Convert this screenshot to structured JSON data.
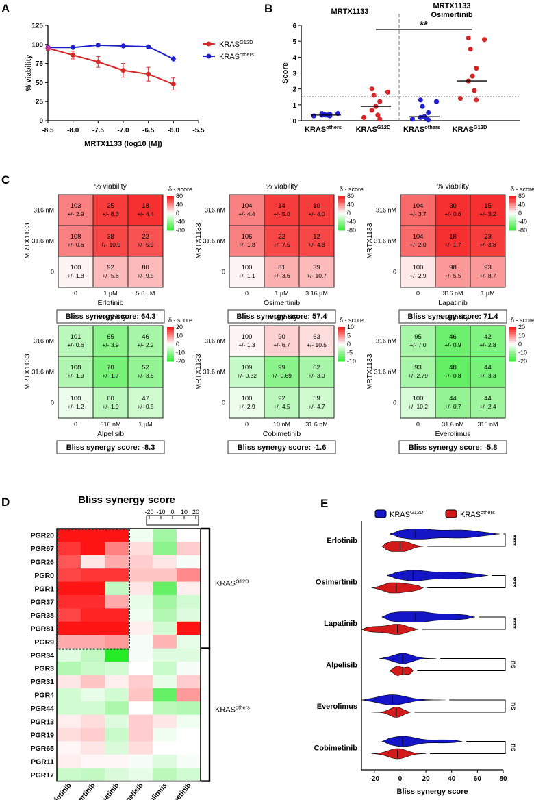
{
  "panel_labels": {
    "a": "A",
    "b": "B",
    "c": "C",
    "d": "D",
    "e": "E"
  },
  "chart_data": [
    {
      "id": "A",
      "type": "line",
      "xlabel": "MRTX1133 (log10 [M])",
      "ylabel": "% viability",
      "xlim": [
        -8.5,
        -5.5
      ],
      "ylim": [
        0,
        125
      ],
      "xticks": [
        "-8.5",
        "-8.0",
        "-7.5",
        "-7.0",
        "-6.5",
        "-6.0",
        "-5.5"
      ],
      "yticks": [
        "0",
        "25",
        "50",
        "75",
        "100",
        "125"
      ],
      "legend_placement": "top-right",
      "series": [
        {
          "legend_main": "KRAS",
          "legend_sup": "G12D",
          "color": "#d62728",
          "x": [
            -8.5,
            -8.0,
            -7.5,
            -7.0,
            -6.5,
            -6.0
          ],
          "y": [
            95,
            86,
            77,
            66,
            61,
            48
          ],
          "err": [
            3,
            5,
            7,
            9,
            9,
            8
          ]
        },
        {
          "legend_main": "KRAS",
          "legend_sup": "others",
          "color": "#1f1fcc",
          "x": [
            -8.5,
            -8.0,
            -7.5,
            -7.0,
            -6.5,
            -6.0
          ],
          "y": [
            96,
            96,
            99,
            98,
            97,
            81
          ],
          "err": [
            2,
            2,
            2,
            4,
            2,
            4
          ]
        }
      ]
    },
    {
      "id": "B",
      "type": "scatter",
      "ylabel": "Score",
      "ylim": [
        0,
        6
      ],
      "yticks": [
        "0",
        "1",
        "2",
        "3",
        "4",
        "5",
        "6"
      ],
      "threshold": 1.5,
      "group_titles": [
        "MRTX1133",
        "MRTX1133",
        "Osimertinib"
      ],
      "significance": "**",
      "groups": [
        {
          "label_main": "KRAS",
          "label_sup": "others",
          "color": "#1f1fcc",
          "median": 0.35,
          "points": [
            0.3,
            0.3,
            0.35,
            0.35,
            0.35,
            0.4,
            0.4,
            0.45,
            0.45
          ]
        },
        {
          "label_main": "KRAS",
          "label_sup": "G12D",
          "color": "#d62728",
          "median": 0.9,
          "points": [
            0.1,
            0.2,
            0.35,
            0.65,
            0.9,
            1.2,
            1.6,
            1.8,
            2.0
          ]
        },
        {
          "label_main": "KRAS",
          "label_sup": "others",
          "color": "#1f1fcc",
          "median": 0.25,
          "points": [
            0.05,
            0.1,
            0.15,
            0.2,
            0.25,
            0.5,
            0.9,
            1.2,
            1.3
          ]
        },
        {
          "label_main": "KRAS",
          "label_sup": "G12D",
          "color": "#d62728",
          "median": 2.5,
          "points": [
            1.3,
            1.4,
            1.9,
            2.5,
            2.8,
            3.3,
            4.5,
            5.1,
            5.2
          ]
        }
      ]
    },
    {
      "id": "C",
      "type": "heatmap",
      "title": "% viability",
      "row_axis": "MRTX1133",
      "legend_title": "δ - score",
      "matrices": [
        {
          "drug": "Erlotinib",
          "cols": [
            "0",
            "1 µM",
            "5.6 µM"
          ],
          "rows": [
            "316 nM",
            "31.6 nM",
            "0"
          ],
          "scale": [
            "80",
            "40",
            "0",
            "-40",
            "-80"
          ],
          "max": 80,
          "vals": [
            [
              "103",
              "25",
              "18"
            ],
            [
              "108",
              "38",
              "22"
            ],
            [
              "100",
              "92",
              "80"
            ]
          ],
          "sds": [
            [
              "+/- 2.9",
              "+/- 8.3",
              "+/- 4.4"
            ],
            [
              "+/- 0.6",
              "+/- 10.9",
              "+/- 5.9"
            ],
            [
              "+/- 1.8",
              "+/- 5.6",
              "+/- 9.5"
            ]
          ],
          "delta": [
            [
              0.55,
              0.85,
              0.9
            ],
            [
              0.55,
              0.8,
              0.75
            ],
            [
              0.05,
              0.3,
              0.3
            ]
          ],
          "bliss": "Bliss synergy score: 64.3"
        },
        {
          "drug": "Osimertinib",
          "cols": [
            "0",
            "1 µM",
            "3.16 µM"
          ],
          "rows": [
            "316 nM",
            "31.6 nM",
            "0"
          ],
          "scale": [
            "80",
            "40",
            "0",
            "-40",
            "-80"
          ],
          "max": 80,
          "vals": [
            [
              "104",
              "14",
              "10"
            ],
            [
              "106",
              "22",
              "12"
            ],
            [
              "100",
              "81",
              "39"
            ]
          ],
          "sds": [
            [
              "+/- 4.4",
              "+/- 5.0",
              "+/- 4.0"
            ],
            [
              "+/- 1.8",
              "+/- 7.5",
              "+/- 4.8"
            ],
            [
              "+/- 1.1",
              "+/- 3.6",
              "+/- 10.7"
            ]
          ],
          "delta": [
            [
              0.55,
              0.85,
              0.85
            ],
            [
              0.55,
              0.8,
              0.8
            ],
            [
              0.05,
              0.35,
              0.3
            ]
          ],
          "bliss": "Bliss synergy score: 57.4"
        },
        {
          "drug": "Lapatinib",
          "cols": [
            "0",
            "316 nM",
            "1 µM"
          ],
          "rows": [
            "316 nM",
            "31.6 nM",
            "0"
          ],
          "scale": [
            "80",
            "40",
            "0",
            "-40",
            "-80"
          ],
          "max": 80,
          "vals": [
            [
              "104",
              "30",
              "15"
            ],
            [
              "104",
              "18",
              "23"
            ],
            [
              "100",
              "98",
              "93"
            ]
          ],
          "sds": [
            [
              "+/- 3.7",
              "+/- 0.6",
              "+/- 3.2"
            ],
            [
              "+/- 2.0",
              "+/- 1.7",
              "+/- 3.8"
            ],
            [
              "+/- 2.9",
              "+/- 5.5",
              "+/- 8.7"
            ]
          ],
          "delta": [
            [
              0.65,
              0.9,
              0.9
            ],
            [
              0.65,
              0.9,
              0.85
            ],
            [
              0.1,
              0.45,
              0.45
            ]
          ],
          "bliss": "Bliss synergy score: 71.4"
        },
        {
          "drug": "Alpelisib",
          "cols": [
            "0",
            "316 nM",
            "1 µM"
          ],
          "rows": [
            "316 nM",
            "31.6 nM",
            "0"
          ],
          "scale": [
            "20",
            "10",
            "0",
            "-10",
            "-20"
          ],
          "max": 20,
          "vals": [
            [
              "101",
              "65",
              "46"
            ],
            [
              "108",
              "70",
              "52"
            ],
            [
              "100",
              "60",
              "47"
            ]
          ],
          "sds": [
            [
              "+/- 0.6",
              "+/- 3.9",
              "+/- 2.2"
            ],
            [
              "+/- 1.9",
              "+/- 1.7",
              "+/- 3.6"
            ],
            [
              "+/- 1.2",
              "+/- 1.9",
              "+/- 0.5"
            ]
          ],
          "delta": [
            [
              -0.35,
              -0.6,
              -0.45
            ],
            [
              -0.4,
              -0.7,
              -0.55
            ],
            [
              -0.1,
              -0.35,
              -0.25
            ]
          ],
          "bliss": "Bliss synergy score: -8.3"
        },
        {
          "drug": "Cobimetinib",
          "cols": [
            "0",
            "10 nM",
            "31.6 nM"
          ],
          "rows": [
            "316 nM",
            "31.6 nM",
            "0"
          ],
          "scale": [
            "10",
            "5",
            "0",
            "-5",
            "-10"
          ],
          "max": 10,
          "vals": [
            [
              "100",
              "90",
              "63"
            ],
            [
              "109",
              "99",
              "62"
            ],
            [
              "100",
              "92",
              "59"
            ]
          ],
          "sds": [
            [
              "+/- 1.3",
              "+/- 6.7",
              "+/- 10.5"
            ],
            [
              "+/- 0.32",
              "+/- 0.69",
              "+/- 3.0"
            ],
            [
              "+/- 2.9",
              "+/- 4.5",
              "+/- 4.7"
            ]
          ],
          "delta": [
            [
              0.05,
              0.2,
              0.15
            ],
            [
              -0.3,
              -0.6,
              -0.45
            ],
            [
              -0.1,
              -0.35,
              -0.25
            ]
          ],
          "bliss": "Bliss synergy score: -1.6"
        },
        {
          "drug": "Everolimus",
          "cols": [
            "0",
            "31.6 nM",
            "316 nM"
          ],
          "rows": [
            "316 nM",
            "31.6 nM",
            "0"
          ],
          "scale": [
            "20",
            "10",
            "0",
            "-10",
            "-20"
          ],
          "max": 20,
          "vals": [
            [
              "95",
              "46",
              "42"
            ],
            [
              "93",
              "48",
              "44"
            ],
            [
              "100",
              "44",
              "44"
            ]
          ],
          "sds": [
            [
              "+/- 7.0",
              "+/- 0.9",
              "+/- 2.8"
            ],
            [
              "+/- 2.79",
              "+/- 0.8",
              "+/- 3.3"
            ],
            [
              "+/- 10.2",
              "+/- 0.7",
              "+/- 2.4"
            ]
          ],
          "delta": [
            [
              -0.45,
              -0.75,
              -0.65
            ],
            [
              -0.45,
              -0.8,
              -0.7
            ],
            [
              -0.2,
              -0.55,
              -0.5
            ]
          ],
          "bliss": "Bliss synergy score: -5.8"
        }
      ]
    },
    {
      "id": "D",
      "type": "heatmap",
      "title": "Bliss synergy score",
      "scale_ticks": [
        "-20",
        "-10",
        "0",
        "10",
        "20"
      ],
      "columns": [
        "Erlotinib",
        "Osimertinib",
        "Lapatinib",
        "Alpelisib",
        "Everolimus",
        "Cobimetinib"
      ],
      "rows": [
        "PGR20",
        "PGR67",
        "PGR26",
        "PGR0",
        "PGR1",
        "PGR37",
        "PGR38",
        "PGR81",
        "PGR9",
        "PGR34",
        "PGR3",
        "PGR31",
        "PGR4",
        "PGR44",
        "PGR13",
        "PGR19",
        "PGR65",
        "PGR11",
        "PGR17"
      ],
      "groups": [
        {
          "main": "KRAS",
          "sup": "G12D",
          "from": 0,
          "to": 8
        },
        {
          "main": "KRAS",
          "sup": "others",
          "from": 9,
          "to": 18
        }
      ],
      "values": [
        [
          28,
          28,
          28,
          -2,
          -12,
          0
        ],
        [
          24,
          28,
          15,
          4,
          -15,
          6
        ],
        [
          20,
          3,
          10,
          6,
          3,
          -1
        ],
        [
          22,
          24,
          24,
          7,
          7,
          14
        ],
        [
          28,
          28,
          -8,
          3,
          -20,
          2
        ],
        [
          25,
          25,
          10,
          -3,
          -12,
          -6
        ],
        [
          22,
          26,
          26,
          -2,
          -10,
          -4
        ],
        [
          28,
          28,
          28,
          2,
          -6,
          28
        ],
        [
          10,
          10,
          12,
          -1,
          9,
          -3
        ],
        [
          -4,
          -8,
          -28,
          -1,
          -4,
          -4
        ],
        [
          -10,
          -7,
          -6,
          0,
          -7,
          -1
        ],
        [
          3,
          7,
          2,
          6,
          -3,
          6
        ],
        [
          -6,
          -3,
          -6,
          7,
          -20,
          12
        ],
        [
          -6,
          -6,
          -11,
          0,
          -9,
          -10
        ],
        [
          2,
          4,
          -4,
          6,
          3,
          -2
        ],
        [
          4,
          6,
          -7,
          6,
          -2,
          0
        ],
        [
          1,
          3,
          -5,
          4,
          0,
          0
        ],
        [
          2,
          1,
          1,
          -1,
          -4,
          -1
        ],
        [
          -7,
          -8,
          -5,
          -3,
          -9,
          -6
        ]
      ]
    },
    {
      "id": "E",
      "type": "violin",
      "xlabel": "Bliss synergy score",
      "xlim": [
        -30,
        80
      ],
      "xticks": [
        "-20",
        "0",
        "20",
        "40",
        "60",
        "80"
      ],
      "legend": [
        {
          "main": "KRAS",
          "sup": "G12D",
          "color": "#1515c8"
        },
        {
          "main": "KRAS",
          "sup": "others",
          "color": "#d21a1a"
        }
      ],
      "drugs": [
        {
          "name": "Erlotinib",
          "sig": "****",
          "g12d": {
            "min": -8,
            "max": 77,
            "median": 12,
            "peaks": [
              [
                12,
                1.0
              ],
              [
                48,
                0.75
              ]
            ]
          },
          "others": {
            "min": -14,
            "max": 18,
            "median": 0,
            "peaks": [
              [
                -6,
                0.9
              ],
              [
                4,
                0.8
              ]
            ]
          }
        },
        {
          "name": "Osimertinib",
          "sig": "****",
          "g12d": {
            "min": -10,
            "max": 68,
            "median": 10,
            "peaks": [
              [
                10,
                1.0
              ],
              [
                44,
                0.6
              ]
            ]
          },
          "others": {
            "min": -22,
            "max": 18,
            "median": -3,
            "peaks": [
              [
                -6,
                1.0
              ],
              [
                8,
                0.6
              ]
            ]
          }
        },
        {
          "name": "Lapatinib",
          "sig": "****",
          "g12d": {
            "min": -14,
            "max": 58,
            "median": 12,
            "peaks": [
              [
                -8,
                0.5
              ],
              [
                12,
                1.0
              ],
              [
                42,
                0.5
              ]
            ]
          },
          "others": {
            "min": -30,
            "max": 14,
            "median": -2,
            "peaks": [
              [
                -20,
                0.5
              ],
              [
                -2,
                1.0
              ]
            ]
          }
        },
        {
          "name": "Alpelisib",
          "sig": "ns",
          "g12d": {
            "min": -16,
            "max": 28,
            "median": 2,
            "peaks": [
              [
                2,
                1.0
              ]
            ]
          },
          "others": {
            "min": -8,
            "max": 10,
            "median": 2,
            "peaks": [
              [
                -2,
                0.9
              ],
              [
                6,
                0.7
              ]
            ]
          }
        },
        {
          "name": "Everolimus",
          "sig": "ns",
          "g12d": {
            "min": -30,
            "max": 35,
            "median": -6,
            "peaks": [
              [
                -6,
                1.0
              ]
            ]
          },
          "others": {
            "min": -22,
            "max": 8,
            "median": -3,
            "peaks": [
              [
                -3,
                1.0
              ]
            ]
          }
        },
        {
          "name": "Cobimetinib",
          "sig": "ns",
          "g12d": {
            "min": -14,
            "max": 48,
            "median": 2,
            "peaks": [
              [
                2,
                1.0
              ],
              [
                34,
                0.3
              ]
            ]
          },
          "others": {
            "min": -22,
            "max": 20,
            "median": -2,
            "peaks": [
              [
                -2,
                1.0
              ]
            ]
          }
        }
      ]
    }
  ]
}
